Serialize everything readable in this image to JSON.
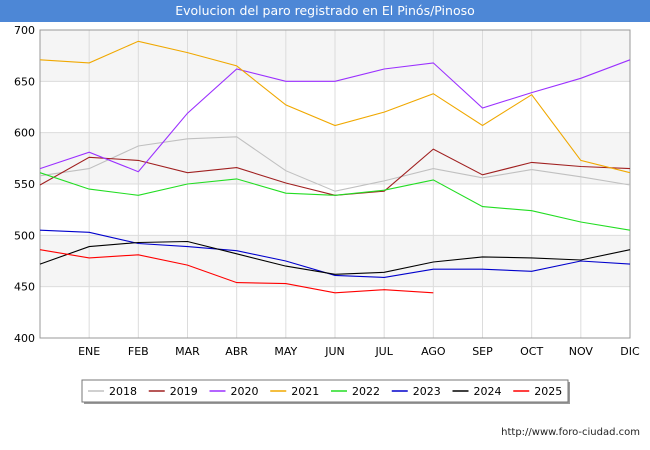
{
  "chart_data": {
    "type": "line",
    "title": "Evolucion del paro registrado en El Pinós/Pinoso",
    "xlabel": "",
    "ylabel": "",
    "categories": [
      "",
      "ENE",
      "FEB",
      "MAR",
      "ABR",
      "MAY",
      "JUN",
      "JUL",
      "AGO",
      "SEP",
      "OCT",
      "NOV",
      "DIC"
    ],
    "ylim": [
      400,
      700
    ],
    "yticks": [
      400,
      450,
      500,
      550,
      600,
      650,
      700
    ],
    "grid": true,
    "legend": "bottom",
    "series": [
      {
        "name": "2018",
        "color": "#c0c0c0",
        "values": [
          558,
          565,
          587,
          594,
          596,
          563,
          543,
          553,
          565,
          556,
          564,
          557,
          549
        ]
      },
      {
        "name": "2019",
        "color": "#a02020",
        "values": [
          549,
          576,
          573,
          561,
          566,
          551,
          539,
          543,
          584,
          559,
          571,
          567,
          565
        ]
      },
      {
        "name": "2020",
        "color": "#9b30ff",
        "values": [
          565,
          581,
          562,
          619,
          662,
          650,
          650,
          662,
          668,
          624,
          639,
          653,
          671
        ]
      },
      {
        "name": "2021",
        "color": "#f0a800",
        "values": [
          671,
          668,
          689,
          678,
          665,
          627,
          607,
          620,
          638,
          607,
          637,
          573,
          561
        ]
      },
      {
        "name": "2022",
        "color": "#22dd22",
        "values": [
          561,
          545,
          539,
          550,
          555,
          541,
          539,
          544,
          554,
          528,
          524,
          513,
          505
        ]
      },
      {
        "name": "2023",
        "color": "#0000cc",
        "values": [
          505,
          503,
          492,
          489,
          485,
          475,
          461,
          459,
          467,
          467,
          465,
          475,
          472
        ]
      },
      {
        "name": "2024",
        "color": "#000000",
        "values": [
          472,
          489,
          493,
          494,
          482,
          470,
          462,
          464,
          474,
          479,
          478,
          476,
          486
        ]
      },
      {
        "name": "2025",
        "color": "#ff0000",
        "values": [
          486,
          478,
          481,
          471,
          454,
          453,
          444,
          447,
          444,
          null,
          null,
          null,
          null
        ]
      }
    ]
  },
  "footer": {
    "url": "http://www.foro-ciudad.com"
  }
}
